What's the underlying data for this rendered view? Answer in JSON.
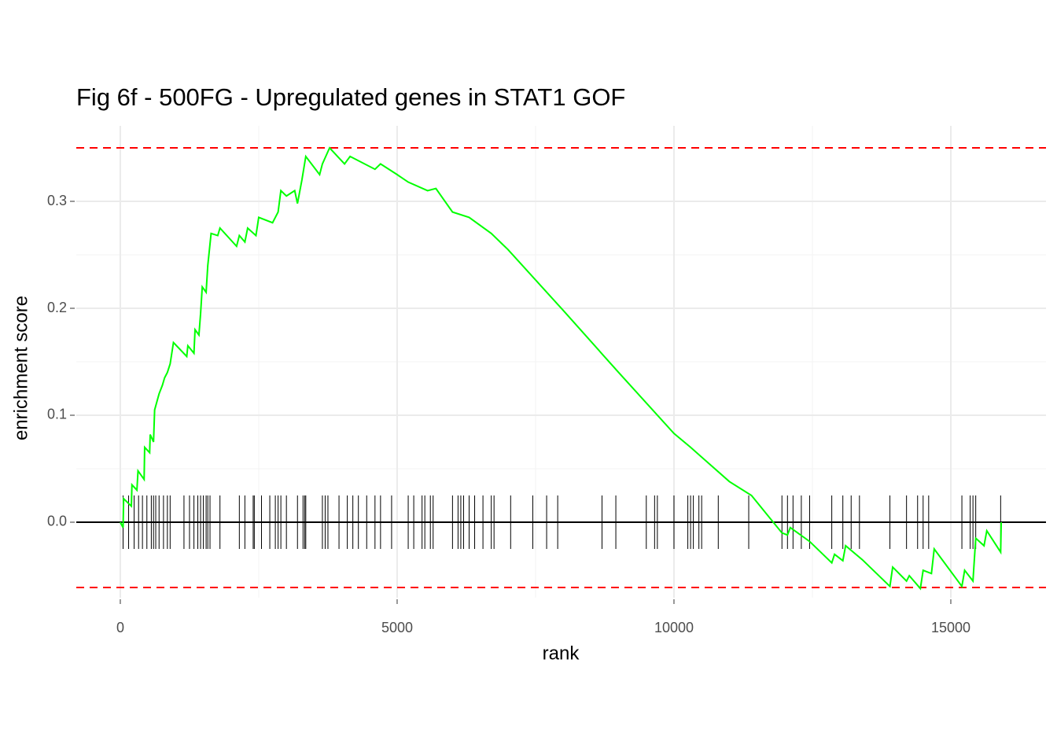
{
  "chart_data": {
    "type": "gsea",
    "title": "Fig 6f - 500FG - Upregulated genes in STAT1 GOF",
    "xlabel": "rank",
    "ylabel": "enrichment score",
    "xlim": [
      -795,
      16719
    ],
    "ylim": [
      -0.0706,
      0.3706
    ],
    "xticks": [
      0,
      5000,
      10000,
      15000
    ],
    "yticks": [
      {
        "value": 0,
        "label": "0.0"
      },
      0.1,
      0.2,
      0.3
    ],
    "grid": true,
    "color": "#00ff00",
    "x": [
      0,
      50,
      60,
      200,
      210,
      300,
      320,
      430,
      440,
      530,
      540,
      600,
      620,
      700,
      760,
      800,
      850,
      900,
      960,
      1200,
      1220,
      1330,
      1350,
      1420,
      1450,
      1480,
      1550,
      1580,
      1620,
      1640,
      1760,
      1800,
      2100,
      2150,
      2250,
      2300,
      2450,
      2500,
      2750,
      2850,
      2900,
      3000,
      3150,
      3200,
      3280,
      3350,
      3600,
      3650,
      3780,
      4050,
      4150,
      4600,
      4700,
      5000,
      5200,
      5550,
      5700,
      6000,
      6300,
      6700,
      7000,
      8000,
      9000,
      10000,
      10300,
      11000,
      11400,
      11950,
      12050,
      12100,
      12450,
      12850,
      12900,
      13050,
      13100,
      13400,
      13900,
      13950,
      14200,
      14250,
      14450,
      14500,
      14650,
      14700,
      15200,
      15250,
      15400,
      15450,
      15600,
      15650,
      15900,
      15910
    ],
    "values": [
      0,
      -0.005,
      0.022,
      0.015,
      0.035,
      0.03,
      0.048,
      0.04,
      0.07,
      0.065,
      0.082,
      0.075,
      0.105,
      0.12,
      0.128,
      0.135,
      0.14,
      0.148,
      0.168,
      0.155,
      0.165,
      0.158,
      0.18,
      0.175,
      0.195,
      0.22,
      0.215,
      0.24,
      0.26,
      0.27,
      0.268,
      0.275,
      0.258,
      0.268,
      0.262,
      0.275,
      0.268,
      0.285,
      0.28,
      0.29,
      0.31,
      0.305,
      0.31,
      0.298,
      0.32,
      0.342,
      0.325,
      0.335,
      0.35,
      0.335,
      0.342,
      0.33,
      0.335,
      0.325,
      0.318,
      0.31,
      0.312,
      0.29,
      0.285,
      0.27,
      0.255,
      0.198,
      0.14,
      0.083,
      0.07,
      0.038,
      0.025,
      -0.01,
      -0.012,
      -0.005,
      -0.018,
      -0.038,
      -0.03,
      -0.036,
      -0.022,
      -0.035,
      -0.06,
      -0.042,
      -0.055,
      -0.05,
      -0.062,
      -0.045,
      -0.048,
      -0.025,
      -0.06,
      -0.045,
      -0.055,
      -0.015,
      -0.022,
      -0.008,
      -0.028,
      0
    ],
    "hits": [
      50,
      150,
      250,
      330,
      400,
      480,
      560,
      600,
      640,
      700,
      780,
      850,
      900,
      1150,
      1250,
      1330,
      1400,
      1450,
      1500,
      1550,
      1580,
      1620,
      1800,
      2150,
      2250,
      2400,
      2420,
      2550,
      2700,
      2800,
      2850,
      2900,
      3000,
      3200,
      3300,
      3330,
      3350,
      3650,
      3700,
      3750,
      3950,
      4100,
      4200,
      4300,
      4450,
      4600,
      4700,
      4900,
      5200,
      5300,
      5450,
      5500,
      5600,
      5650,
      6000,
      6100,
      6150,
      6200,
      6300,
      6400,
      6550,
      6700,
      6750,
      7050,
      7450,
      7700,
      7900,
      8700,
      8950,
      9500,
      9650,
      9700,
      10000,
      10250,
      10300,
      10350,
      10450,
      10500,
      10800,
      11350,
      11950,
      12050,
      12150,
      12300,
      12450,
      12850,
      13050,
      13200,
      13350,
      13900,
      14200,
      14400,
      14500,
      14600,
      15200,
      15350,
      15400,
      15450,
      15900
    ],
    "hit_color": "#000000",
    "hlines": [
      0.35,
      -0.061
    ],
    "hline_color": "#ff0000"
  }
}
